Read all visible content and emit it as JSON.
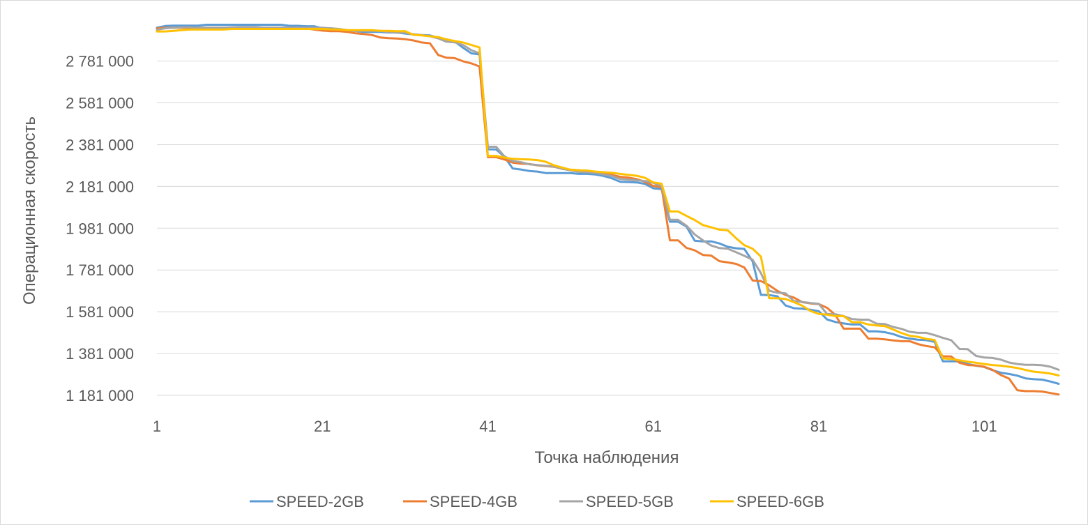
{
  "chart_data": {
    "type": "line",
    "title": "",
    "xlabel": "Точка наблюдения",
    "ylabel": "Операционная скорость",
    "xlim": [
      1,
      110
    ],
    "ylim": [
      1181000,
      3000000
    ],
    "x_ticks": [
      1,
      21,
      41,
      61,
      81,
      101
    ],
    "x_tick_labels": [
      "1",
      "21",
      "41",
      "61",
      "81",
      "101"
    ],
    "y_ticks": [
      1181000,
      1381000,
      1581000,
      1781000,
      1981000,
      2181000,
      2381000,
      2581000,
      2781000
    ],
    "y_tick_labels": [
      "1 181 000",
      "1 381 000",
      "1 581 000",
      "1 781 000",
      "1 981 000",
      "2 181 000",
      "2 381 000",
      "2 581 000",
      "2 781 000"
    ],
    "grid": true,
    "legend": "bottom",
    "colors": {
      "SPEED-2GB": "#5b9bd5",
      "SPEED-4GB": "#ed7d31",
      "SPEED-5GB": "#a5a5a5",
      "SPEED-6GB": "#ffc000"
    },
    "series": [
      {
        "name": "SPEED-2GB",
        "values": [
          2941000,
          2949000,
          2951000,
          2951000,
          2951000,
          2951000,
          2955000,
          2955000,
          2955000,
          2955000,
          2955000,
          2955000,
          2955000,
          2955000,
          2955000,
          2955000,
          2950000,
          2950000,
          2948000,
          2948000,
          2938000,
          2938000,
          2934000,
          2929000,
          2925000,
          2921000,
          2921000,
          2921000,
          2918000,
          2918000,
          2913000,
          2909000,
          2906000,
          2904000,
          2893000,
          2885000,
          2875000,
          2845000,
          2818000,
          2813000,
          2359000,
          2358000,
          2323000,
          2267000,
          2262000,
          2255000,
          2252000,
          2245000,
          2245000,
          2245000,
          2245000,
          2241000,
          2241000,
          2238000,
          2231000,
          2220000,
          2203000,
          2202000,
          2200000,
          2193000,
          2172000,
          2168000,
          2012000,
          2012000,
          1989000,
          1921000,
          1918000,
          1918000,
          1908000,
          1892000,
          1885000,
          1882000,
          1822000,
          1662000,
          1661000,
          1655000,
          1611000,
          1598000,
          1596000,
          1591000,
          1584000,
          1544000,
          1532000,
          1525000,
          1520000,
          1520000,
          1487000,
          1487000,
          1483000,
          1474000,
          1460000,
          1452000,
          1447000,
          1445000,
          1437000,
          1344000,
          1344000,
          1344000,
          1331000,
          1323000,
          1317000,
          1301000,
          1289000,
          1283000,
          1275000,
          1262000,
          1258000,
          1256000,
          1247000,
          1236000
        ]
      },
      {
        "name": "SPEED-4GB",
        "values": [
          2937000,
          2941000,
          2941000,
          2941000,
          2941000,
          2941000,
          2941000,
          2941000,
          2941000,
          2941000,
          2941000,
          2941000,
          2941000,
          2941000,
          2941000,
          2941000,
          2941000,
          2941000,
          2938000,
          2932000,
          2927000,
          2924000,
          2924000,
          2921000,
          2914000,
          2911000,
          2906000,
          2894000,
          2891000,
          2889000,
          2886000,
          2880000,
          2870000,
          2866000,
          2810000,
          2797000,
          2795000,
          2780000,
          2770000,
          2755000,
          2321000,
          2321000,
          2310000,
          2295000,
          2290000,
          2288000,
          2282000,
          2278000,
          2275000,
          2265000,
          2261000,
          2258000,
          2252000,
          2247000,
          2241000,
          2236000,
          2227000,
          2223000,
          2216000,
          2203000,
          2183000,
          2178000,
          1923000,
          1923000,
          1887000,
          1875000,
          1853000,
          1850000,
          1823000,
          1817000,
          1810000,
          1793000,
          1731000,
          1728000,
          1708000,
          1681000,
          1661000,
          1649000,
          1627000,
          1621000,
          1618000,
          1600000,
          1566000,
          1500000,
          1500000,
          1500000,
          1452000,
          1452000,
          1449000,
          1444000,
          1440000,
          1440000,
          1426000,
          1417000,
          1411000,
          1368000,
          1367000,
          1337000,
          1326000,
          1324000,
          1318000,
          1303000,
          1278000,
          1261000,
          1205000,
          1201000,
          1201000,
          1199000,
          1192000,
          1185000
        ]
      },
      {
        "name": "SPEED-5GB",
        "values": [
          2931000,
          2938000,
          2941000,
          2943000,
          2943000,
          2941000,
          2941000,
          2941000,
          2941000,
          2943000,
          2944000,
          2944000,
          2944000,
          2941000,
          2941000,
          2941000,
          2941000,
          2941000,
          2941000,
          2941000,
          2941000,
          2938000,
          2935000,
          2929000,
          2926000,
          2926000,
          2926000,
          2926000,
          2920000,
          2917000,
          2917000,
          2909000,
          2906000,
          2900000,
          2890000,
          2874000,
          2871000,
          2858000,
          2833000,
          2818000,
          2371000,
          2371000,
          2325000,
          2303000,
          2297000,
          2287000,
          2283000,
          2280000,
          2276000,
          2265000,
          2258000,
          2251000,
          2249000,
          2246000,
          2238000,
          2231000,
          2216000,
          2213000,
          2210000,
          2207000,
          2198000,
          2182000,
          2021000,
          2021000,
          1993000,
          1951000,
          1923000,
          1898000,
          1886000,
          1883000,
          1866000,
          1849000,
          1830000,
          1766000,
          1682000,
          1672000,
          1669000,
          1632000,
          1628000,
          1623000,
          1619000,
          1570000,
          1569000,
          1560000,
          1546000,
          1543000,
          1543000,
          1524000,
          1522000,
          1508000,
          1499000,
          1485000,
          1480000,
          1480000,
          1469000,
          1456000,
          1445000,
          1403000,
          1402000,
          1370000,
          1362000,
          1360000,
          1352000,
          1338000,
          1331000,
          1327000,
          1327000,
          1325000,
          1318000,
          1303000
        ]
      },
      {
        "name": "SPEED-6GB",
        "values": [
          2923000,
          2923000,
          2926000,
          2929000,
          2932000,
          2932000,
          2932000,
          2932000,
          2932000,
          2935000,
          2935000,
          2935000,
          2935000,
          2935000,
          2935000,
          2935000,
          2935000,
          2935000,
          2935000,
          2935000,
          2935000,
          2933000,
          2932000,
          2929000,
          2929000,
          2929000,
          2929000,
          2926000,
          2926000,
          2924000,
          2924000,
          2907000,
          2904000,
          2900000,
          2896000,
          2885000,
          2877000,
          2870000,
          2858000,
          2846000,
          2327000,
          2327000,
          2319000,
          2313000,
          2311000,
          2310000,
          2307000,
          2299000,
          2282000,
          2271000,
          2261000,
          2258000,
          2257000,
          2252000,
          2249000,
          2246000,
          2241000,
          2236000,
          2232000,
          2222000,
          2200000,
          2194000,
          2061000,
          2061000,
          2040000,
          2020000,
          1996000,
          1985000,
          1974000,
          1971000,
          1933000,
          1900000,
          1883000,
          1845000,
          1646000,
          1646000,
          1642000,
          1627000,
          1610000,
          1585000,
          1571000,
          1567000,
          1560000,
          1560000,
          1531000,
          1531000,
          1520000,
          1515000,
          1512000,
          1496000,
          1479000,
          1466000,
          1461000,
          1451000,
          1446000,
          1358000,
          1355000,
          1349000,
          1342000,
          1337000,
          1331000,
          1326000,
          1323000,
          1318000,
          1312000,
          1302000,
          1294000,
          1290000,
          1285000,
          1276000
        ]
      }
    ]
  }
}
